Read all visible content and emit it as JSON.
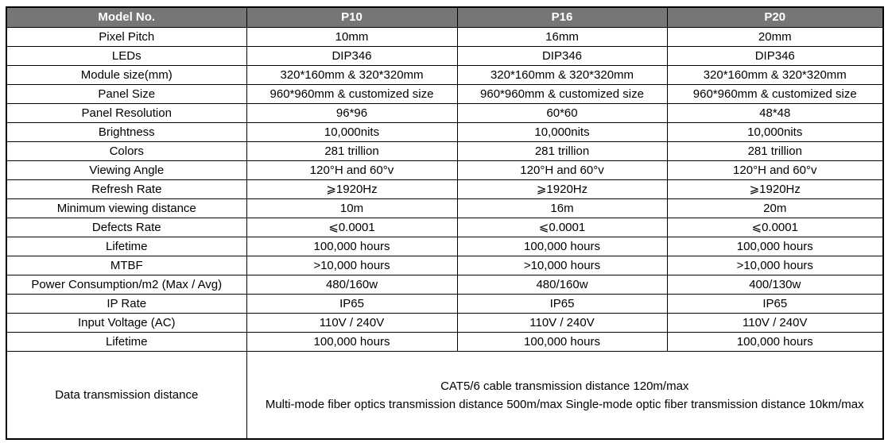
{
  "colors": {
    "header_bg": "#767676",
    "header_text": "#ffffff",
    "border": "#000000",
    "body_text": "#000000",
    "page_bg": "#ffffff"
  },
  "table": {
    "header": [
      "Model No.",
      "P10",
      "P16",
      "P20"
    ],
    "rows": [
      {
        "label": "Pixel Pitch",
        "values": [
          "10mm",
          "16mm",
          "20mm"
        ]
      },
      {
        "label": "LEDs",
        "values": [
          "DIP346",
          "DIP346",
          "DIP346"
        ]
      },
      {
        "label": "Module size(mm)",
        "values": [
          "320*160mm & 320*320mm",
          "320*160mm & 320*320mm",
          "320*160mm & 320*320mm"
        ]
      },
      {
        "label": "Panel Size",
        "values": [
          "960*960mm & customized size",
          "960*960mm & customized size",
          "960*960mm & customized size"
        ]
      },
      {
        "label": "Panel Resolution",
        "values": [
          "96*96",
          "60*60",
          "48*48"
        ]
      },
      {
        "label": "Brightness",
        "values": [
          "10,000nits",
          "10,000nits",
          "10,000nits"
        ]
      },
      {
        "label": "Colors",
        "values": [
          "281 trillion",
          "281 trillion",
          "281 trillion"
        ]
      },
      {
        "label": "Viewing Angle",
        "values": [
          "120°H and 60°v",
          "120°H and 60°v",
          "120°H and 60°v"
        ]
      },
      {
        "label": "Refresh Rate",
        "values": [
          "⩾1920Hz",
          "⩾1920Hz",
          "⩾1920Hz"
        ]
      },
      {
        "label": "Minimum viewing distance",
        "values": [
          "10m",
          "16m",
          "20m"
        ]
      },
      {
        "label": "Defects Rate",
        "values": [
          "⩽0.0001",
          "⩽0.0001",
          "⩽0.0001"
        ]
      },
      {
        "label": "Lifetime",
        "values": [
          "100,000 hours",
          "100,000 hours",
          "100,000 hours"
        ]
      },
      {
        "label": "MTBF",
        "values": [
          ">10,000 hours",
          ">10,000 hours",
          ">10,000 hours"
        ]
      },
      {
        "label": "Power Consumption/m2 (Max / Avg)",
        "values": [
          "480/160w",
          "480/160w",
          "400/130w"
        ]
      },
      {
        "label": "IP Rate",
        "values": [
          "IP65",
          "IP65",
          "IP65"
        ]
      },
      {
        "label": "Input Voltage (AC)",
        "values": [
          "110V / 240V",
          "110V / 240V",
          "110V / 240V"
        ]
      },
      {
        "label": "Lifetime",
        "values": [
          "100,000 hours",
          "100,000 hours",
          "100,000 hours"
        ]
      }
    ],
    "footer": {
      "label": "Data transmission distance",
      "line1": "CAT5/6 cable transmission distance 120m/max",
      "line2": "Multi-mode fiber optics transmission distance 500m/max Single-mode optic fiber transmission distance 10km/max"
    }
  }
}
